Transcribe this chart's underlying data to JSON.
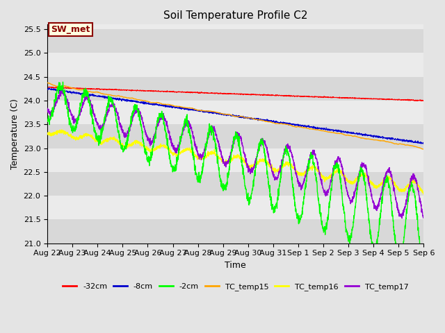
{
  "title": "Soil Temperature Profile C2",
  "xlabel": "Time",
  "ylabel": "Temperature (C)",
  "ylim": [
    21.0,
    25.6
  ],
  "annotation": "SW_met",
  "annotation_color": "#8B0000",
  "annotation_bg": "#FFFFE0",
  "annotation_border": "#8B0000",
  "series": {
    "neg32cm": {
      "label": "-32cm",
      "color": "#FF0000"
    },
    "neg8cm": {
      "label": "-8cm",
      "color": "#0000CD"
    },
    "neg2cm": {
      "label": "-2cm",
      "color": "#00FF00"
    },
    "TC_temp15": {
      "label": "TC_temp15",
      "color": "#FFA500"
    },
    "TC_temp16": {
      "label": "TC_temp16",
      "color": "#FFFF00"
    },
    "TC_temp17": {
      "label": "TC_temp17",
      "color": "#9400D3"
    }
  },
  "xtick_labels": [
    "Aug 22",
    "Aug 23",
    "Aug 24",
    "Aug 25",
    "Aug 26",
    "Aug 27",
    "Aug 28",
    "Aug 29",
    "Aug 30",
    "Aug 31",
    "Sep 1",
    "Sep 2",
    "Sep 3",
    "Sep 4",
    "Sep 5",
    "Sep 6"
  ],
  "bg_light": "#EBEBEB",
  "bg_dark": "#D8D8D8",
  "fig_bg": "#E4E4E4"
}
